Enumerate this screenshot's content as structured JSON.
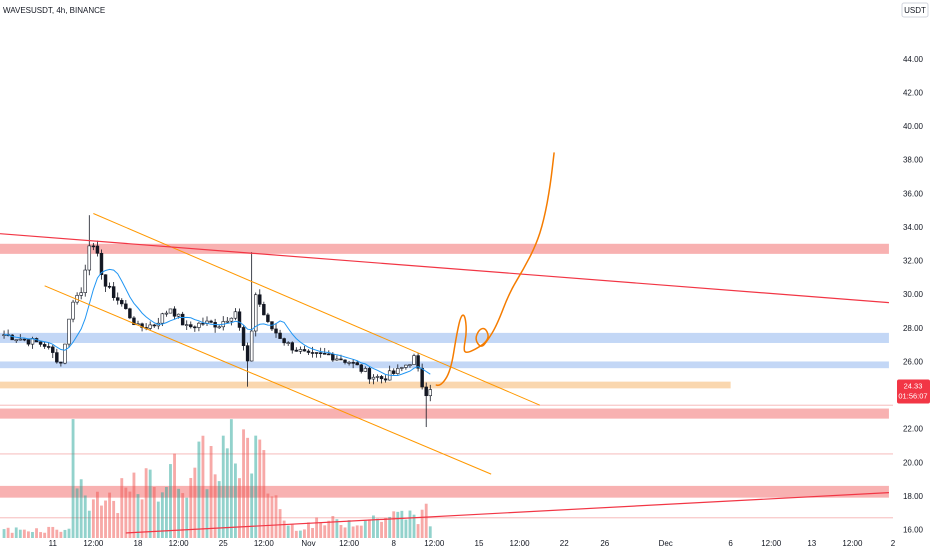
{
  "header": {
    "symbol": "WAVESUSDT, 4h, BINANCE",
    "currency": "USDT"
  },
  "price_badge": {
    "price": "24.33",
    "countdown": "01:56:07",
    "color": "#f23645"
  },
  "colors": {
    "up": "#26a69a",
    "down": "#ef5350",
    "candle_body": "#131722",
    "ma": "#2196f3",
    "resistance_zone": "#f7a8a8",
    "support_zone": "#bcd3f5",
    "pivot_zone": "#fad3a6",
    "channel": "#ff9800",
    "trendline": "#f23645",
    "projection": "#f57c00"
  },
  "chart_data": {
    "type": "candlestick",
    "title": "WAVESUSDT, 4h, BINANCE",
    "ylim": [
      15.5,
      47.5
    ],
    "y_ticks": [
      16,
      18,
      20,
      22,
      24,
      26,
      28,
      30,
      32,
      34,
      36,
      38,
      40,
      42,
      44
    ],
    "y_tick_labels": [
      "16.00",
      "18.00",
      "20.00",
      "22.00",
      "24.00",
      "26.00",
      "28.00",
      "30.00",
      "32.00",
      "34.00",
      "36.00",
      "38.00",
      "40.00",
      "42.00",
      "44.00"
    ],
    "x_domain": [
      -1,
      219
    ],
    "x_ticks": [
      {
        "bar": 12,
        "label": "11"
      },
      {
        "bar": 22,
        "label": "12:00"
      },
      {
        "bar": 33,
        "label": "18"
      },
      {
        "bar": 43,
        "label": "12:00"
      },
      {
        "bar": 54,
        "label": "25"
      },
      {
        "bar": 64,
        "label": "12:00"
      },
      {
        "bar": 75,
        "label": "Nov"
      },
      {
        "bar": 85,
        "label": "12:00"
      },
      {
        "bar": 96,
        "label": "8"
      },
      {
        "bar": 106,
        "label": "12:00"
      },
      {
        "bar": 117,
        "label": "15"
      },
      {
        "bar": 127,
        "label": "12:00"
      },
      {
        "bar": 138,
        "label": "22"
      },
      {
        "bar": 148,
        "label": "26"
      },
      {
        "bar": 163,
        "label": "Dec"
      },
      {
        "bar": 179,
        "label": "6"
      },
      {
        "bar": 189,
        "label": "12:00"
      },
      {
        "bar": 199,
        "label": "13"
      },
      {
        "bar": 209,
        "label": "12:00"
      },
      {
        "bar": 219,
        "label": "2"
      }
    ],
    "price_anchors": [
      [
        0,
        27.6
      ],
      [
        5,
        27.3
      ],
      [
        10,
        27.0
      ],
      [
        14,
        25.9
      ],
      [
        17,
        29.7
      ],
      [
        19,
        30.1
      ],
      [
        21,
        33.1
      ],
      [
        23,
        32.2
      ],
      [
        25,
        30.5
      ],
      [
        29,
        29.4
      ],
      [
        33,
        28.0
      ],
      [
        37,
        28.2
      ],
      [
        41,
        29.2
      ],
      [
        45,
        28.0
      ],
      [
        49,
        28.3
      ],
      [
        53,
        28.2
      ],
      [
        57,
        29.0
      ],
      [
        60,
        25.8
      ],
      [
        62,
        30.0
      ],
      [
        65,
        28.2
      ],
      [
        70,
        27.0
      ],
      [
        75,
        26.3
      ],
      [
        80,
        26.4
      ],
      [
        85,
        26.0
      ],
      [
        90,
        25.2
      ],
      [
        93,
        25.0
      ],
      [
        97,
        25.4
      ],
      [
        101,
        26.2
      ],
      [
        103,
        24.6
      ],
      [
        104,
        24.2
      ],
      [
        105,
        24.3
      ]
    ],
    "volume_anchors": [
      [
        0,
        0.08
      ],
      [
        16,
        0.1
      ],
      [
        17,
        0.9
      ],
      [
        21,
        0.3
      ],
      [
        61,
        0.95
      ],
      [
        70,
        0.12
      ],
      [
        104,
        0.25
      ],
      [
        106,
        0.06
      ]
    ],
    "last_price": 24.33,
    "zones": [
      {
        "kind": "resistance",
        "price_range": [
          32.4,
          33.0
        ],
        "bar_range": [
          -1,
          218
        ]
      },
      {
        "kind": "support",
        "price_range": [
          27.1,
          27.7
        ],
        "bar_range": [
          -1,
          218
        ]
      },
      {
        "kind": "support",
        "price_range": [
          25.6,
          26.0
        ],
        "bar_range": [
          -1,
          218
        ]
      },
      {
        "kind": "pivot",
        "price_range": [
          24.4,
          24.8
        ],
        "bar_range": [
          -1,
          179
        ]
      },
      {
        "kind": "resistance",
        "price_range": [
          22.6,
          23.2
        ],
        "bar_range": [
          -1,
          218
        ]
      },
      {
        "kind": "resistance",
        "price_range": [
          17.9,
          18.6
        ],
        "bar_range": [
          -1,
          218
        ]
      }
    ],
    "reference_lines": [
      23.4,
      20.5,
      16.7
    ],
    "channel_lines": [
      {
        "from": [
          22,
          34.8
        ],
        "to": [
          132,
          23.4
        ]
      },
      {
        "from": [
          10,
          30.5
        ],
        "to": [
          120,
          19.3
        ]
      }
    ],
    "trend_lines": [
      {
        "from": [
          -1,
          33.6
        ],
        "to": [
          218,
          29.5
        ]
      },
      {
        "from": [
          30,
          15.8
        ],
        "to": [
          218,
          18.2
        ]
      }
    ],
    "projection_path": [
      [
        106.5,
        24.6
      ],
      [
        107.5,
        24.5
      ],
      [
        110,
        25.4
      ],
      [
        111.5,
        27.6
      ],
      [
        112.5,
        28.7
      ],
      [
        113.5,
        28.8
      ],
      [
        114,
        27.8
      ],
      [
        113.2,
        26.7
      ],
      [
        113.8,
        26.5
      ],
      [
        116,
        26.7
      ],
      [
        118.5,
        27.1
      ],
      [
        119.5,
        27.5
      ],
      [
        118.5,
        28.0
      ],
      [
        117,
        27.9
      ],
      [
        116,
        27.3
      ],
      [
        117.5,
        26.8
      ],
      [
        119,
        27.2
      ],
      [
        121.5,
        28.2
      ],
      [
        124.5,
        30.1
      ],
      [
        128,
        31.5
      ],
      [
        131,
        32.9
      ],
      [
        133,
        34.4
      ],
      [
        134.6,
        36.5
      ],
      [
        135.5,
        38.4
      ]
    ]
  }
}
